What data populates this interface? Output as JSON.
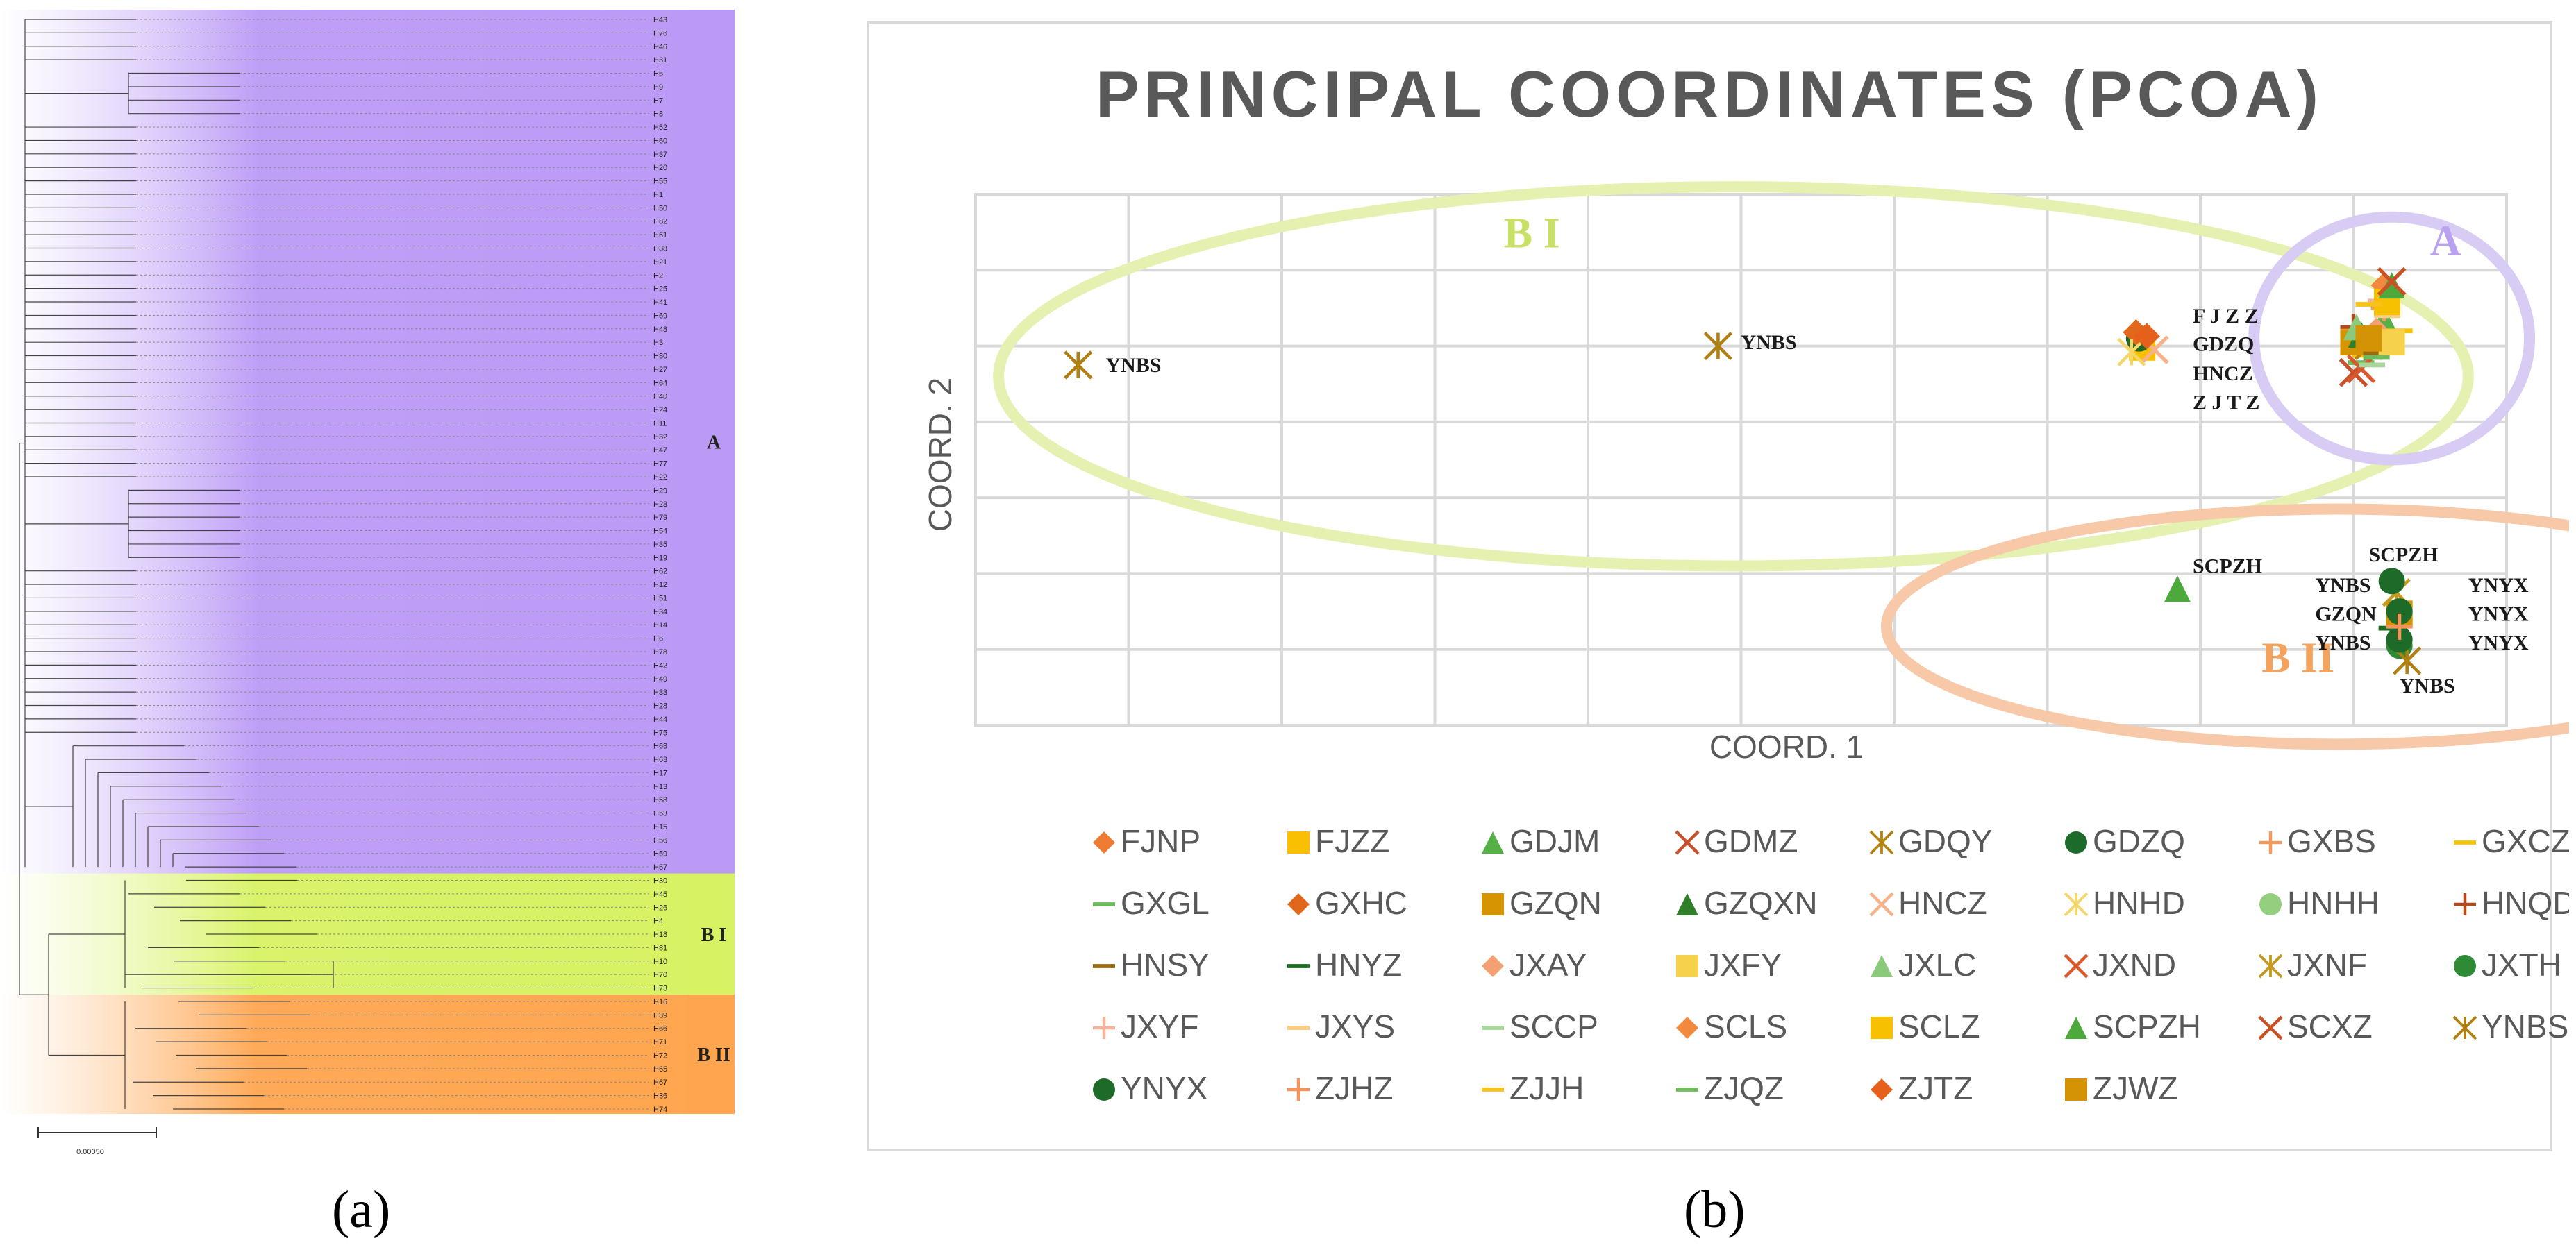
{
  "figure": {
    "panel_a_label": "(a)",
    "panel_b_label": "(b)"
  },
  "tree": {
    "tips": [
      "H43",
      "H76",
      "H46",
      "H31",
      "H5",
      "H9",
      "H7",
      "H8",
      "H52",
      "H60",
      "H37",
      "H20",
      "H55",
      "H1",
      "H50",
      "H82",
      "H61",
      "H38",
      "H21",
      "H2",
      "H25",
      "H41",
      "H69",
      "H48",
      "H3",
      "H80",
      "H27",
      "H64",
      "H40",
      "H24",
      "H11",
      "H32",
      "H47",
      "H77",
      "H22",
      "H29",
      "H23",
      "H79",
      "H54",
      "H35",
      "H19",
      "H62",
      "H12",
      "H51",
      "H34",
      "H14",
      "H6",
      "H78",
      "H42",
      "H49",
      "H33",
      "H28",
      "H44",
      "H75",
      "H68",
      "H63",
      "H17",
      "H13",
      "H58",
      "H53",
      "H15",
      "H56",
      "H59",
      "H57",
      "H30",
      "H45",
      "H26",
      "H4",
      "H18",
      "H81",
      "H10",
      "H70",
      "H73",
      "H16",
      "H39",
      "H66",
      "H71",
      "H72",
      "H65",
      "H67",
      "H36",
      "H74"
    ],
    "clusters": [
      {
        "name": "A",
        "color": "#bb9af6",
        "start": 0,
        "count": 64
      },
      {
        "name": "B I",
        "color": "#d7f263",
        "start": 64,
        "count": 9
      },
      {
        "name": "B II",
        "color": "#ffa54f",
        "start": 73,
        "count": 9
      }
    ],
    "scale_label": "0.00050"
  },
  "chart_data": {
    "type": "scatter",
    "title": "PRINCIPAL COORDINATES (PCOA)",
    "xlabel": "COORD. 1",
    "ylabel": "COORD. 2",
    "xlim": [
      0,
      10
    ],
    "ylim": [
      0,
      7
    ],
    "grid": true,
    "legend_position": "bottom",
    "cluster_ellipses": [
      {
        "label": "B I",
        "color": "#e5f1b0",
        "cx": 4.95,
        "cy": 4.6,
        "rx": 4.8,
        "ry": 2.5
      },
      {
        "label": "A",
        "color": "#d8ccf5",
        "cx": 9.25,
        "cy": 5.1,
        "rx": 0.9,
        "ry": 1.6
      },
      {
        "label": "B II",
        "color": "#f7c9a8",
        "cx": 8.9,
        "cy": 1.3,
        "rx": 2.95,
        "ry": 1.55
      }
    ],
    "cluster_labels": [
      {
        "text": "B I",
        "x": 3.45,
        "y": 6.3,
        "color": "#c8e063"
      },
      {
        "text": "A",
        "x": 9.5,
        "y": 6.2,
        "color": "#b9a2ef"
      },
      {
        "text": "B II",
        "x": 8.4,
        "y": 0.7,
        "color": "#f5a25c"
      }
    ],
    "point_labels": [
      {
        "text": "YNBS",
        "x": 0.85,
        "y": 4.75
      },
      {
        "text": "YNBS",
        "x": 5.0,
        "y": 5.05
      },
      {
        "text": "F J Z Z",
        "x": 7.95,
        "y": 5.4
      },
      {
        "text": "GDZQ",
        "x": 7.95,
        "y": 5.03
      },
      {
        "text": "HNCZ",
        "x": 7.95,
        "y": 4.64
      },
      {
        "text": "Z J T Z",
        "x": 7.95,
        "y": 4.26
      },
      {
        "text": "SCPZH",
        "x": 7.95,
        "y": 2.1
      },
      {
        "text": "SCPZH",
        "x": 9.1,
        "y": 2.25
      },
      {
        "text": "YNBS",
        "x": 8.75,
        "y": 1.85
      },
      {
        "text": "YNYX",
        "x": 9.75,
        "y": 1.85
      },
      {
        "text": "GZQN",
        "x": 8.75,
        "y": 1.47
      },
      {
        "text": "YNYX",
        "x": 9.75,
        "y": 1.47
      },
      {
        "text": "YNBS",
        "x": 8.75,
        "y": 1.09
      },
      {
        "text": "YNYX",
        "x": 9.75,
        "y": 1.09
      },
      {
        "text": "YNBS",
        "x": 9.3,
        "y": 0.52
      }
    ],
    "series": [
      {
        "name": "FJNP",
        "marker": "diamond",
        "color": "#f07c33",
        "points": [
          [
            9.22,
            5.15
          ]
        ]
      },
      {
        "name": "FJZZ",
        "marker": "square",
        "color": "#f8c000",
        "points": [
          [
            7.62,
            4.98
          ],
          [
            9.08,
            5.02
          ]
        ]
      },
      {
        "name": "GDJM",
        "marker": "triangle",
        "color": "#55b045",
        "points": [
          [
            9.2,
            5.35
          ]
        ]
      },
      {
        "name": "GDMZ",
        "marker": "x",
        "color": "#c8502a",
        "points": [
          [
            9.0,
            4.65
          ]
        ]
      },
      {
        "name": "GDQY",
        "marker": "asterisk",
        "color": "#b38413",
        "points": [
          [
            9.1,
            5.0
          ]
        ]
      },
      {
        "name": "GDZQ",
        "marker": "circle",
        "color": "#1d6b2a",
        "points": [
          [
            7.6,
            5.1
          ]
        ]
      },
      {
        "name": "GXBS",
        "marker": "plus",
        "color": "#f49a5a",
        "points": [
          [
            9.2,
            5.5
          ]
        ]
      },
      {
        "name": "GXCZ",
        "marker": "dash",
        "color": "#f6c500",
        "points": [
          [
            9.3,
            5.2
          ]
        ]
      },
      {
        "name": "GXGL",
        "marker": "dash",
        "color": "#6cbb5a",
        "points": [
          [
            9.05,
            4.78
          ]
        ]
      },
      {
        "name": "GXHC",
        "marker": "diamond",
        "color": "#e0671b",
        "points": [
          [
            7.58,
            5.18
          ]
        ]
      },
      {
        "name": "GZQN",
        "marker": "square",
        "color": "#d69500",
        "points": [
          [
            9.0,
            5.05
          ],
          [
            9.3,
            1.47
          ]
        ]
      },
      {
        "name": "GZQXN",
        "marker": "triangle",
        "color": "#2f7f2a",
        "points": [
          [
            9.05,
            5.15
          ]
        ]
      },
      {
        "name": "HNCZ",
        "marker": "x",
        "color": "#f6b28a",
        "points": [
          [
            7.7,
            4.95
          ]
        ]
      },
      {
        "name": "HNHD",
        "marker": "asterisk",
        "color": "#f5d668",
        "points": [
          [
            7.55,
            4.92
          ]
        ]
      },
      {
        "name": "HNHH",
        "marker": "circle",
        "color": "#93cf7f",
        "points": [
          [
            9.12,
            5.1
          ]
        ]
      },
      {
        "name": "HNQD",
        "marker": "plus",
        "color": "#b24a1c",
        "points": [
          [
            9.0,
            5.25
          ]
        ]
      },
      {
        "name": "HNSY",
        "marker": "dash",
        "color": "#9c6a10",
        "points": [
          [
            9.15,
            4.9
          ]
        ]
      },
      {
        "name": "HNYZ",
        "marker": "dash",
        "color": "#1d6e20",
        "points": [
          [
            9.25,
            1.28
          ]
        ]
      },
      {
        "name": "JXAY",
        "marker": "diamond",
        "color": "#f3a073",
        "points": [
          [
            9.15,
            5.2
          ]
        ]
      },
      {
        "name": "JXFY",
        "marker": "square",
        "color": "#f6d24c",
        "points": [
          [
            9.25,
            5.05
          ]
        ]
      },
      {
        "name": "JXLC",
        "marker": "triangle",
        "color": "#8bc97b",
        "points": [
          [
            9.02,
            5.25
          ]
        ]
      },
      {
        "name": "JXND",
        "marker": "x",
        "color": "#d9592c",
        "points": [
          [
            9.05,
            4.7
          ]
        ]
      },
      {
        "name": "JXNF",
        "marker": "asterisk",
        "color": "#c49a1f",
        "points": [
          [
            9.28,
            1.75
          ]
        ]
      },
      {
        "name": "JXTH",
        "marker": "circle",
        "color": "#2e8a34",
        "points": [
          [
            9.3,
            1.05
          ]
        ]
      },
      {
        "name": "JXYF",
        "marker": "plus",
        "color": "#f5b39b",
        "points": [
          [
            9.18,
            5.6
          ]
        ]
      },
      {
        "name": "JXYS",
        "marker": "dash",
        "color": "#f8cd82",
        "points": [
          [
            9.22,
            5.4
          ]
        ]
      },
      {
        "name": "SCCP",
        "marker": "dash",
        "color": "#a9d79b",
        "points": [
          [
            9.12,
            4.75
          ]
        ]
      },
      {
        "name": "SCLS",
        "marker": "diamond",
        "color": "#f2893f",
        "points": [
          [
            9.2,
            5.8
          ]
        ]
      },
      {
        "name": "SCLZ",
        "marker": "square",
        "color": "#f7c000",
        "points": [
          [
            9.22,
            5.58
          ]
        ]
      },
      {
        "name": "SCPZH",
        "marker": "triangle",
        "color": "#4ea93d",
        "points": [
          [
            7.85,
            1.8
          ],
          [
            9.25,
            5.8
          ]
        ]
      },
      {
        "name": "SCXZ",
        "marker": "x",
        "color": "#c85223",
        "points": [
          [
            9.25,
            5.85
          ]
        ]
      },
      {
        "name": "YNBS",
        "marker": "asterisk",
        "color": "#b07f12",
        "points": [
          [
            0.67,
            4.75
          ],
          [
            4.85,
            5.0
          ],
          [
            9.35,
            0.85
          ]
        ]
      },
      {
        "name": "YNYX",
        "marker": "circle",
        "color": "#1e6a28",
        "points": [
          [
            9.25,
            1.9
          ],
          [
            9.3,
            1.5
          ],
          [
            9.3,
            1.13
          ]
        ]
      },
      {
        "name": "ZJHZ",
        "marker": "plus",
        "color": "#f4935a",
        "points": [
          [
            9.3,
            1.3
          ]
        ]
      },
      {
        "name": "ZJJH",
        "marker": "dash",
        "color": "#f6c31a",
        "points": [
          [
            9.1,
            5.55
          ]
        ]
      },
      {
        "name": "ZJQZ",
        "marker": "dash",
        "color": "#71bb5e",
        "points": [
          [
            9.15,
            4.85
          ]
        ]
      },
      {
        "name": "ZJTZ",
        "marker": "diamond",
        "color": "#e5601a",
        "points": [
          [
            7.65,
            5.13
          ]
        ]
      },
      {
        "name": "ZJWZ",
        "marker": "square",
        "color": "#d39304",
        "points": [
          [
            9.1,
            5.1
          ]
        ]
      }
    ]
  }
}
